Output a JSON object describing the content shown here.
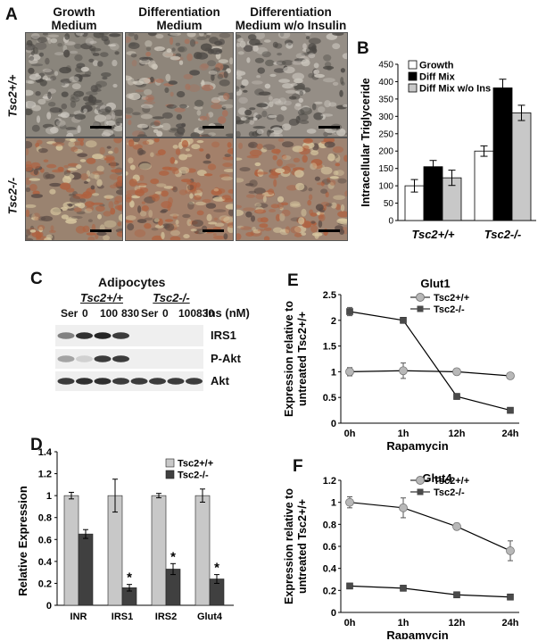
{
  "panels": {
    "A": {
      "label": "A",
      "columns": [
        "Growth\nMedium",
        "Differentiation\nMedium",
        "Differentiation\nMedium w/o Insulin"
      ],
      "rows": [
        "Tsc2+/+",
        "Tsc2-/-"
      ]
    },
    "B": {
      "label": "B",
      "ylabel": "Intracellular Triglyceride",
      "ylim": [
        0,
        450
      ],
      "yticks": [
        "0",
        "50",
        "100",
        "150",
        "200",
        "250",
        "300",
        "350",
        "400",
        "450"
      ],
      "legend": [
        "Growth",
        "Diff Mix",
        "Diff Mix w/o Ins"
      ],
      "groups": [
        "Tsc2+/+",
        "Tsc2-/-"
      ],
      "colors": [
        "#ffffff",
        "#000000",
        "#c8c8c8"
      ]
    },
    "C": {
      "label": "C",
      "title": "Adipocytes",
      "genotypes": [
        "Tsc2+/+",
        "Tsc2-/-"
      ],
      "lanes": [
        "Ser",
        "0",
        "100",
        "830",
        "Ser",
        "0",
        "100",
        "830"
      ],
      "unit": "Ins (nM)",
      "bands": [
        "IRS1",
        "P-Akt",
        "Akt"
      ],
      "intensity": {
        "IRS1": [
          0.55,
          0.9,
          0.95,
          0.85,
          0,
          0,
          0,
          0
        ],
        "P-Akt": [
          0.4,
          0.2,
          0.85,
          0.85,
          0,
          0,
          0,
          0
        ],
        "Akt": [
          0.85,
          0.9,
          0.9,
          0.85,
          0.85,
          0.85,
          0.85,
          0.85
        ]
      }
    },
    "D": {
      "label": "D",
      "ylabel": "Relative Expression",
      "yticks": [
        "0",
        "0.2",
        "0.4",
        "0.6",
        "0.8",
        "1",
        "1.2",
        "1.4"
      ],
      "legend": [
        "Tsc2+/+",
        "Tsc2-/-"
      ],
      "star": "*",
      "colors": [
        "#c8c8c8",
        "#404040"
      ]
    },
    "E": {
      "label": "E",
      "title": "Glut1",
      "ylabel1": "Expression relative to",
      "ylabel2": "untreated Tsc2+/+",
      "xlabel": "Rapamycin",
      "yticks": [
        "0",
        "0.5",
        "1",
        "1.5",
        "2",
        "2.5"
      ],
      "legend": [
        "Tsc2+/+",
        "Tsc2-/-"
      ]
    },
    "F": {
      "label": "F",
      "title": "Glut4",
      "ylabel1": "Expression relative to",
      "ylabel2": "untreated Tsc2+/+",
      "xlabel": "Rapamycin",
      "yticks": [
        "0",
        "0.2",
        "0.4",
        "0.6",
        "0.8",
        "1",
        "1.2"
      ],
      "legend": [
        "Tsc2+/+",
        "Tsc2-/-"
      ]
    }
  },
  "chart_data": [
    {
      "type": "bar",
      "ylabel": "Intracellular Triglyceride",
      "categories": [
        "Tsc2+/+",
        "Tsc2-/-"
      ],
      "ylim": [
        0,
        450
      ],
      "series": [
        {
          "name": "Growth",
          "values": [
            100,
            200
          ],
          "errors": [
            18,
            15
          ]
        },
        {
          "name": "Diff Mix",
          "values": [
            155,
            382
          ],
          "errors": [
            18,
            25
          ]
        },
        {
          "name": "Diff Mix w/o Ins",
          "values": [
            123,
            310
          ],
          "errors": [
            22,
            22
          ]
        }
      ],
      "legend": "top-left"
    },
    {
      "type": "bar",
      "ylabel": "Relative Expression",
      "categories": [
        "INR",
        "IRS1",
        "IRS2",
        "Glut4"
      ],
      "ylim": [
        0,
        1.4
      ],
      "series": [
        {
          "name": "Tsc2+/+",
          "values": [
            1.0,
            1.0,
            1.0,
            1.0
          ],
          "errors": [
            0.03,
            0.15,
            0.02,
            0.06
          ]
        },
        {
          "name": "Tsc2-/-",
          "values": [
            0.65,
            0.16,
            0.33,
            0.24
          ],
          "errors": [
            0.04,
            0.03,
            0.05,
            0.04
          ]
        }
      ],
      "significant": [
        "IRS1",
        "IRS2",
        "Glut4"
      ],
      "legend": "top-right"
    },
    {
      "type": "line",
      "title": "Glut1",
      "xlabel": "Rapamycin",
      "ylabel": "Expression relative to untreated Tsc2+/+",
      "x": [
        "0h",
        "1h",
        "12h",
        "24h"
      ],
      "ylim": [
        0,
        2.5
      ],
      "series": [
        {
          "name": "Tsc2+/+",
          "values": [
            1.0,
            1.02,
            1.0,
            0.92
          ],
          "errors": [
            0.08,
            0.15,
            0.06,
            0.03
          ]
        },
        {
          "name": "Tsc2-/-",
          "values": [
            2.17,
            2.0,
            0.52,
            0.25
          ],
          "errors": [
            0.08,
            0.03,
            0.02,
            0.02
          ]
        }
      ],
      "legend": "top-right"
    },
    {
      "type": "line",
      "title": "Glut4",
      "xlabel": "Rapamycin",
      "ylabel": "Expression relative to untreated Tsc2+/+",
      "x": [
        "0h",
        "1h",
        "12h",
        "24h"
      ],
      "ylim": [
        0,
        1.2
      ],
      "series": [
        {
          "name": "Tsc2+/+",
          "values": [
            1.0,
            0.95,
            0.78,
            0.56
          ],
          "errors": [
            0.05,
            0.09,
            0.03,
            0.09
          ]
        },
        {
          "name": "Tsc2-/-",
          "values": [
            0.24,
            0.22,
            0.16,
            0.14
          ],
          "errors": [
            0.02,
            0.01,
            0.01,
            0.01
          ]
        }
      ],
      "legend": "top-right"
    }
  ]
}
